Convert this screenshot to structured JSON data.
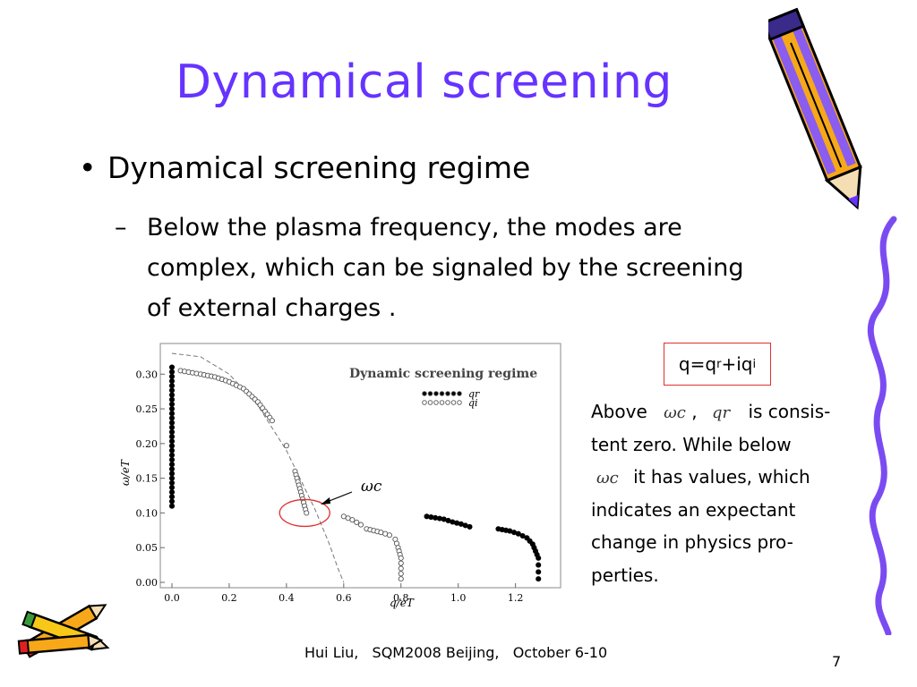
{
  "slide": {
    "title": "Dynamical screening",
    "bullet": "Dynamical screening regime",
    "bullet_marker": "•",
    "sub_marker": "–",
    "sub_lines": [
      "Below the plasma frequency, the modes are",
      "complex, which can be signaled by the screening",
      "of external charges ."
    ],
    "formula": {
      "q": "q=q",
      "r": "r",
      "plus": "+iq",
      "i": "i"
    },
    "desc": {
      "above": "Above",
      "omega_c": "ωc",
      "comma": ",",
      "q_r": "qr",
      "is_consis": "is consis-",
      "line2": "tent zero. While below",
      "line3_suffix": "it has values, which",
      "line4": "indicates an expectant",
      "line5": "change in physics pro-",
      "line6": "perties."
    },
    "footer": "Hui Liu,   SQM2008 Beijing,   October 6-10",
    "page_number": "7",
    "title_color": "#6633ff"
  },
  "chart_data": {
    "type": "scatter",
    "title": "Dynamic screening regime",
    "xlabel": "q/eT",
    "ylabel": "ω/eT",
    "xlim": [
      0,
      1.32
    ],
    "ylim": [
      0,
      0.33
    ],
    "x_ticks": [
      "0.0",
      "0.2",
      "0.4",
      "0.6",
      "0.8",
      "1.0",
      "1.2"
    ],
    "y_ticks": [
      "0.00",
      "0.05",
      "0.10",
      "0.15",
      "0.20",
      "0.25",
      "0.30"
    ],
    "annotation": "ωc",
    "series": [
      {
        "name": "qr",
        "marker": "filled",
        "points": [
          [
            0.0,
            0.31
          ],
          [
            0.0,
            0.29
          ],
          [
            0.0,
            0.27
          ],
          [
            0.0,
            0.25
          ],
          [
            0.0,
            0.23
          ],
          [
            0.0,
            0.21
          ],
          [
            0.0,
            0.19
          ],
          [
            0.0,
            0.17
          ],
          [
            0.0,
            0.15
          ],
          [
            0.0,
            0.13
          ],
          [
            0.0,
            0.11
          ],
          [
            0.89,
            0.095
          ],
          [
            0.92,
            0.093
          ],
          [
            0.95,
            0.091
          ],
          [
            0.98,
            0.087
          ],
          [
            1.01,
            0.084
          ],
          [
            1.04,
            0.08
          ],
          [
            1.14,
            0.077
          ],
          [
            1.18,
            0.074
          ],
          [
            1.21,
            0.07
          ],
          [
            1.24,
            0.064
          ],
          [
            1.26,
            0.055
          ],
          [
            1.27,
            0.045
          ],
          [
            1.28,
            0.035
          ],
          [
            1.28,
            0.025
          ],
          [
            1.28,
            0.015
          ],
          [
            1.28,
            0.005
          ]
        ]
      },
      {
        "name": "qi",
        "marker": "open",
        "points": [
          [
            0.03,
            0.305
          ],
          [
            0.1,
            0.3
          ],
          [
            0.15,
            0.296
          ],
          [
            0.2,
            0.289
          ],
          [
            0.25,
            0.279
          ],
          [
            0.3,
            0.26
          ],
          [
            0.35,
            0.233
          ],
          [
            0.4,
            0.197
          ],
          [
            0.43,
            0.16
          ],
          [
            0.45,
            0.13
          ],
          [
            0.46,
            0.115
          ],
          [
            0.47,
            0.1
          ],
          [
            0.6,
            0.095
          ],
          [
            0.63,
            0.09
          ],
          [
            0.66,
            0.083
          ],
          [
            0.68,
            0.077
          ],
          [
            0.73,
            0.072
          ],
          [
            0.76,
            0.068
          ],
          [
            0.78,
            0.062
          ],
          [
            0.79,
            0.05
          ],
          [
            0.8,
            0.035
          ],
          [
            0.8,
            0.02
          ],
          [
            0.8,
            0.005
          ]
        ]
      }
    ],
    "legend": [
      {
        "label": "qr",
        "marker": "filled"
      },
      {
        "label": "qi",
        "marker": "open"
      }
    ],
    "dashed_curve": [
      [
        0.0,
        0.33
      ],
      [
        0.1,
        0.325
      ],
      [
        0.2,
        0.3
      ],
      [
        0.3,
        0.255
      ],
      [
        0.4,
        0.19
      ],
      [
        0.5,
        0.105
      ],
      [
        0.55,
        0.055
      ],
      [
        0.58,
        0.02
      ],
      [
        0.6,
        0.0
      ]
    ],
    "colors": {
      "highlight_ellipse": "#e03030",
      "formula_box": "#e03030"
    }
  }
}
